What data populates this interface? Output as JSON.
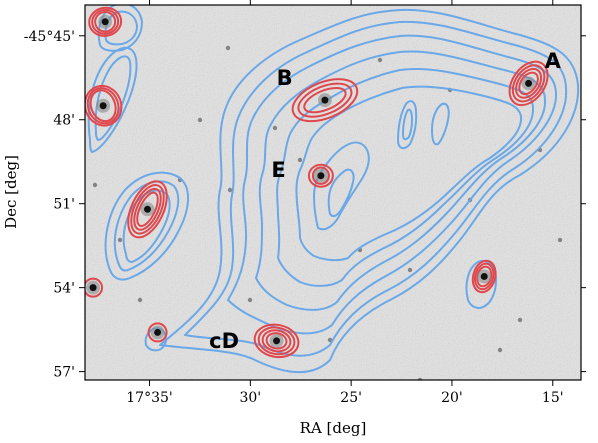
{
  "colors": {
    "radio_contour": "#6aa8e8",
    "xray_contour": "#e0474c",
    "background": "#e4e4e4"
  },
  "chart_data": {
    "type": "contour-image",
    "xlabel": "RA [deg]",
    "ylabel": "Dec [deg]",
    "x_ticks": [
      {
        "value": 35,
        "label": "17°35'"
      },
      {
        "value": 30,
        "label": "30'"
      },
      {
        "value": 25,
        "label": "25'"
      },
      {
        "value": 20,
        "label": "20'"
      },
      {
        "value": 15,
        "label": "15'"
      }
    ],
    "y_ticks": [
      {
        "value": 45,
        "label": "-45°45'"
      },
      {
        "value": 48,
        "label": "48'"
      },
      {
        "value": 51,
        "label": "51'"
      },
      {
        "value": 54,
        "label": "54'"
      },
      {
        "value": 57,
        "label": "57'"
      }
    ],
    "xlim": [
      38.2,
      13.6
    ],
    "ylim": [
      57.3,
      43.9
    ],
    "sources": [
      {
        "label": "A",
        "ra": 16.2,
        "dec": 46.7,
        "text_ra": 15.0,
        "text_dec": 45.9
      },
      {
        "label": "B",
        "ra": 26.3,
        "dec": 47.3,
        "text_ra": 28.3,
        "text_dec": 46.5
      },
      {
        "label": "E",
        "ra": 26.5,
        "dec": 50.0,
        "text_ra": 28.6,
        "text_dec": 49.8
      },
      {
        "label": "cD",
        "ra": 28.7,
        "dec": 55.9,
        "text_ra": 31.3,
        "text_dec": 55.9
      }
    ],
    "radio_contour_levels": 7,
    "xray_clumps": [
      {
        "ra": 37.2,
        "dec": 44.5
      },
      {
        "ra": 37.3,
        "dec": 47.5
      },
      {
        "ra": 35.1,
        "dec": 51.2
      },
      {
        "ra": 18.4,
        "dec": 53.6
      },
      {
        "ra": 37.8,
        "dec": 54.0
      },
      {
        "ra": 34.6,
        "dec": 55.6
      }
    ]
  }
}
